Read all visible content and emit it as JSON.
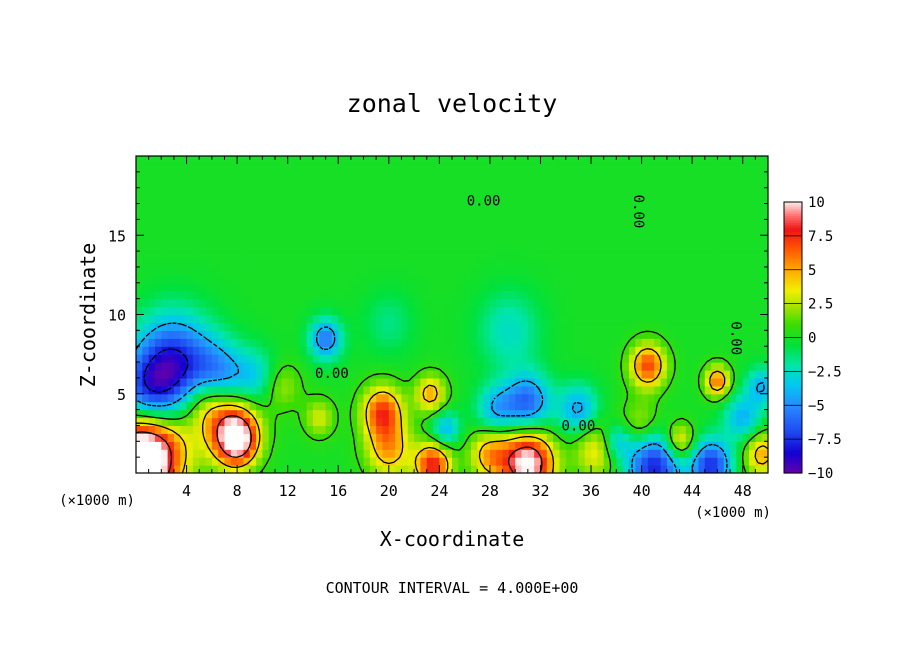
{
  "chart_data": {
    "type": "heatmap",
    "title": "zonal velocity",
    "xlabel": "X-coordinate",
    "ylabel": "Z-coordinate",
    "x_unit": "(×1000 m)",
    "x_unit_right": "(×1000 m)",
    "footer": "CONTOUR INTERVAL = 4.000E+00",
    "xlim": [
      0,
      50
    ],
    "ylim": [
      0,
      20
    ],
    "x_ticks": [
      4,
      8,
      12,
      16,
      20,
      24,
      28,
      32,
      36,
      40,
      44,
      48
    ],
    "y_ticks": [
      5,
      10,
      15
    ],
    "colorbar": {
      "min": -10,
      "max": 10,
      "tick_values": [
        10,
        7.5,
        5,
        2.5,
        0,
        -2.5,
        -5,
        -7.5,
        -10
      ],
      "tick_labels": [
        "10",
        "7.5",
        "5",
        "2.5",
        "0",
        "−2.5",
        "−5",
        "−7.5",
        "−10"
      ]
    },
    "contour_labels": [
      {
        "text": "0.00",
        "x": 27.5,
        "y": 17.2
      },
      {
        "text": "0.00",
        "x": 39.8,
        "y": 16.5,
        "vertical": true
      },
      {
        "text": "0.00",
        "x": 15.5,
        "y": 6.3
      },
      {
        "text": "0.00",
        "x": 35.0,
        "y": 3.0
      },
      {
        "text": "0.00",
        "x": 47.5,
        "y": 8.5,
        "vertical": true
      }
    ],
    "features": [
      {
        "x": 0,
        "y": 0.5,
        "value": 11,
        "r": 2.5
      },
      {
        "x": 1.5,
        "y": 1.6,
        "value": 7,
        "r": 2.8
      },
      {
        "x": 7.5,
        "y": 3.0,
        "value": 7,
        "r": 2.2
      },
      {
        "x": 8.0,
        "y": 2.0,
        "value": 8,
        "r": 1.5
      },
      {
        "x": 5.5,
        "y": 4.6,
        "value": 4,
        "r": 1.8
      },
      {
        "x": 3.0,
        "y": 7.0,
        "value": -7.5,
        "r": 3.0
      },
      {
        "x": 1.0,
        "y": 5.0,
        "value": -6,
        "r": 2.5
      },
      {
        "x": 6.5,
        "y": 6.0,
        "value": -5,
        "r": 2.2
      },
      {
        "x": 9.5,
        "y": 6.0,
        "value": -3,
        "r": 1.8
      },
      {
        "x": 11.5,
        "y": 5.5,
        "value": 2.5,
        "r": 1.5
      },
      {
        "x": 15.0,
        "y": 8.5,
        "value": -5.5,
        "r": 1.3
      },
      {
        "x": 14.5,
        "y": 3.5,
        "value": 3,
        "r": 1.2
      },
      {
        "x": 19.5,
        "y": 3.9,
        "value": 7,
        "r": 1.6
      },
      {
        "x": 20.0,
        "y": 1.5,
        "value": 5,
        "r": 1.8
      },
      {
        "x": 23.3,
        "y": 5.0,
        "value": 5,
        "r": 1.2
      },
      {
        "x": 23.5,
        "y": 0.5,
        "value": 8,
        "r": 1.4
      },
      {
        "x": 24.5,
        "y": 2.8,
        "value": -4,
        "r": 1.1
      },
      {
        "x": 28.5,
        "y": 4.0,
        "value": -4,
        "r": 1.6
      },
      {
        "x": 29.5,
        "y": 9.0,
        "value": -2.5,
        "r": 2.5
      },
      {
        "x": 31.0,
        "y": 4.5,
        "value": -6,
        "r": 1.8
      },
      {
        "x": 31.0,
        "y": 0.6,
        "value": 11,
        "r": 2.0
      },
      {
        "x": 28.0,
        "y": 1.2,
        "value": 5,
        "r": 1.6
      },
      {
        "x": 35.0,
        "y": 4.0,
        "value": -4.5,
        "r": 1.6
      },
      {
        "x": 36.5,
        "y": 1.5,
        "value": 4,
        "r": 1.8
      },
      {
        "x": 40.5,
        "y": 6.8,
        "value": 7,
        "r": 1.4
      },
      {
        "x": 41.0,
        "y": 0.5,
        "value": -8,
        "r": 2.2
      },
      {
        "x": 40.0,
        "y": 3.0,
        "value": 3,
        "r": 1.6
      },
      {
        "x": 43.0,
        "y": 2.0,
        "value": 5,
        "r": 1.2
      },
      {
        "x": 45.5,
        "y": 0.5,
        "value": -7.5,
        "r": 1.6
      },
      {
        "x": 46.0,
        "y": 5.8,
        "value": 6,
        "r": 1.0
      },
      {
        "x": 48.0,
        "y": 3.5,
        "value": -4,
        "r": 1.5
      },
      {
        "x": 49.5,
        "y": 1.2,
        "value": 5,
        "r": 1.4
      },
      {
        "x": 49.5,
        "y": 5.5,
        "value": -4,
        "r": 1.2
      },
      {
        "x": 38.0,
        "y": 2.0,
        "value": -4,
        "r": 1.2
      },
      {
        "x": 20.0,
        "y": 9.5,
        "value": -1.5,
        "r": 2.0
      }
    ]
  }
}
